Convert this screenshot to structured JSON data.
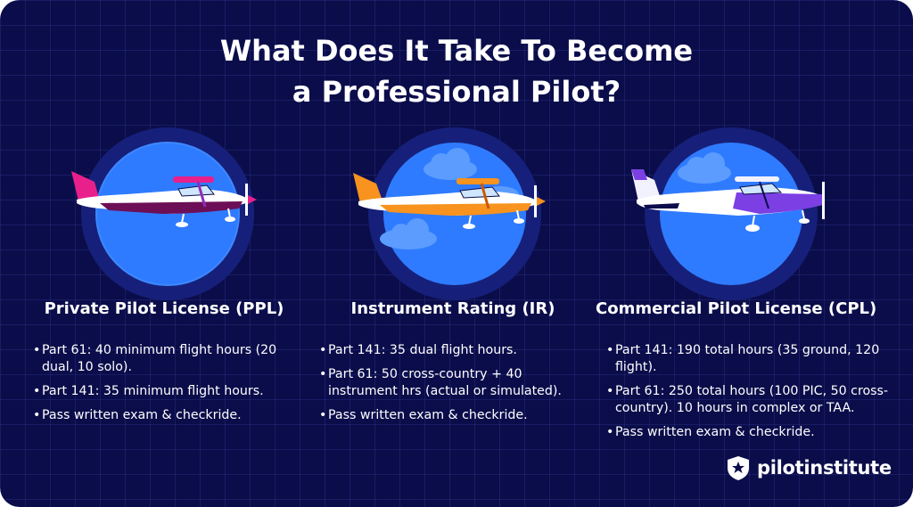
{
  "title_line1": "What Does It Take To Become",
  "title_line2": "a Professional Pilot?",
  "columns": [
    {
      "heading": "Private Pilot License (PPL)",
      "points": [
        "Part 61: 40 minimum flight hours (20 dual, 10 solo).",
        "Part 141: 35 minimum flight hours.",
        "Pass written exam & checkride."
      ],
      "accent": "#e8208c"
    },
    {
      "heading": "Instrument Rating (IR)",
      "points": [
        "Part 141: 35 dual flight hours.",
        "Part 61: 50 cross-country + 40 instrument hrs (actual or simulated).",
        "Pass written exam & checkride."
      ],
      "accent": "#f7931e"
    },
    {
      "heading": "Commercial Pilot License (CPL)",
      "points": [
        "Part 141: 190 total hours (35 ground, 120 flight).",
        "Part 61: 250 total hours (100 PIC, 50 cross-country). 10 hours in complex or TAA.",
        "Pass written exam & checkride."
      ],
      "accent": "#7b3fe4"
    }
  ],
  "logo": {
    "text": "pilotinstitute",
    "icon": "star-shield-icon"
  },
  "colors": {
    "background": "#0b0d4a",
    "circle": "#2f7bff",
    "circle_ring": "#16207a",
    "text": "#ffffff"
  }
}
